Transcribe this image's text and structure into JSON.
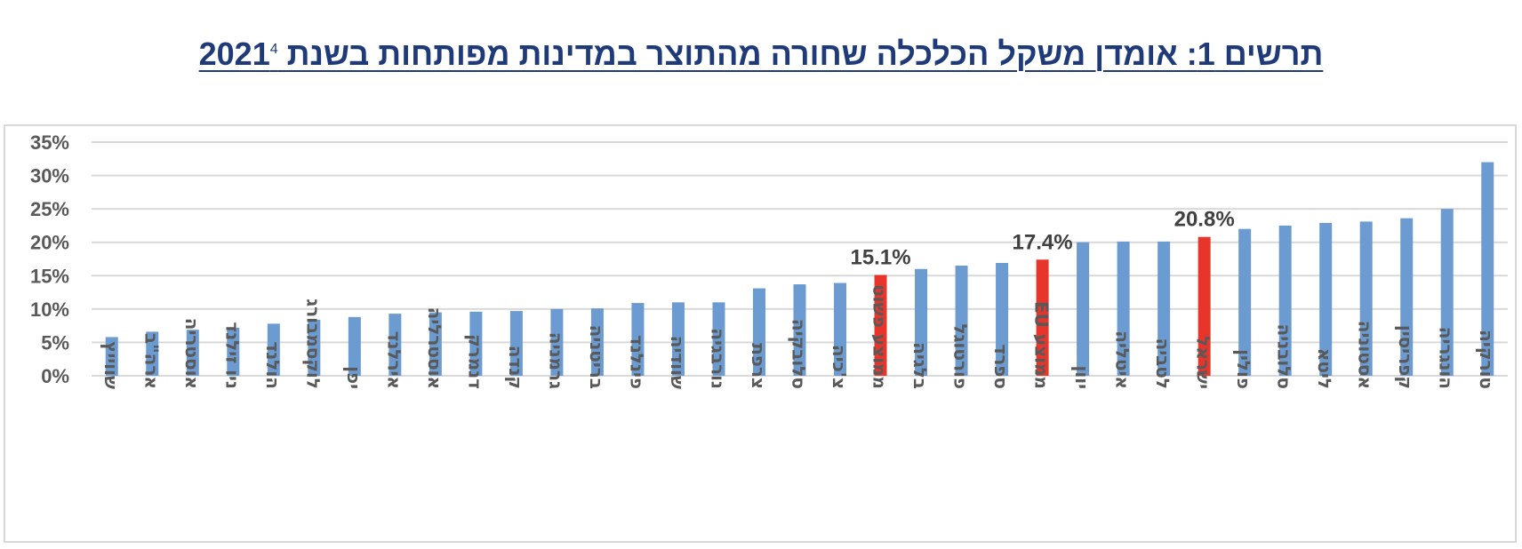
{
  "title": {
    "text": "תרשים 1: אומדן משקל הכלכלה שחורה מהתוצר במדינות מפותחות בשנת 2021",
    "footnote": "4"
  },
  "colors": {
    "bar": "#6b9bd1",
    "highlight": "#e8352b",
    "grid": "#d9d9d9",
    "title": "#1f3a78"
  },
  "chart_data": {
    "type": "bar",
    "title": "תרשים 1: אומדן משקל הכלכלה שחורה מהתוצר במדינות מפותחות בשנת 2021",
    "xlabel": "",
    "ylabel": "",
    "ylim": [
      0,
      35
    ],
    "yticks": [
      0,
      5,
      10,
      15,
      20,
      25,
      30,
      35
    ],
    "ytick_labels": [
      "0%",
      "5%",
      "10%",
      "15%",
      "20%",
      "25%",
      "30%",
      "35%"
    ],
    "grid": true,
    "legend": false,
    "categories": [
      "שווייץ",
      "ארה\"ב",
      "אוסטריה",
      "ניו זילנד",
      "הולנד",
      "לוקסמבורג",
      "יפן",
      "אירלנד",
      "אוסטרליה",
      "דנמרק",
      "קנדה",
      "גרמניה",
      "בריטניה",
      "פינלנד",
      "שוודיה",
      "נורבגיה",
      "צרפת",
      "סלובקיה",
      "צ'כיה",
      "ממוצע פשוט",
      "בלגיה",
      "פורטוגל",
      "ספרד",
      "ממוצע EU",
      "יוון",
      "איטליה",
      "לטביה",
      "ישראל",
      "פולין",
      "סלובניה",
      "ליטא",
      "אסטוניה",
      "קפריסין",
      "הונגריה",
      "טורקיה"
    ],
    "values": [
      5.8,
      6.6,
      6.9,
      7.2,
      7.8,
      8.4,
      8.8,
      9.3,
      9.5,
      9.6,
      9.7,
      10.0,
      10.1,
      10.9,
      11.0,
      11.0,
      13.1,
      13.7,
      13.9,
      15.1,
      16.0,
      16.5,
      16.9,
      17.4,
      20.0,
      20.1,
      20.1,
      20.8,
      22.0,
      22.5,
      22.9,
      23.1,
      23.6,
      25.0,
      32.0
    ],
    "highlighted": [
      "ממוצע פשוט",
      "ממוצע EU",
      "ישראל"
    ],
    "data_labels": [
      {
        "category": "ממוצע פשוט",
        "text": "15.1%"
      },
      {
        "category": "ממוצע EU",
        "text": "17.4%"
      },
      {
        "category": "ישראל",
        "text": "20.8%"
      }
    ]
  }
}
